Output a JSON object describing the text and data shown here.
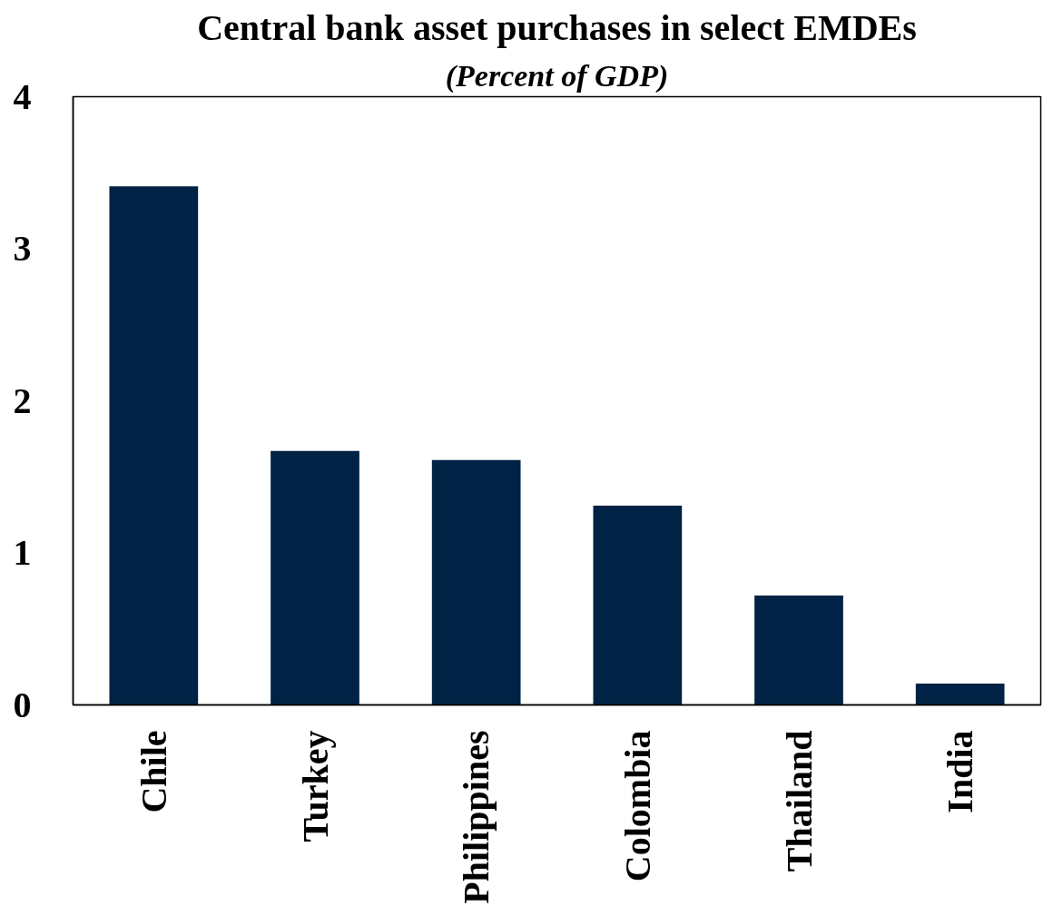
{
  "chart_data": {
    "type": "bar",
    "title": "Central bank asset purchases in select EMDEs",
    "subtitle": "(Percent of GDP)",
    "categories": [
      "Chile",
      "Turkey",
      "Philippines",
      "Colombia",
      "Thailand",
      "India"
    ],
    "values": [
      3.41,
      1.67,
      1.61,
      1.31,
      0.72,
      0.14
    ],
    "color": "#002244",
    "ylim": [
      0,
      4
    ],
    "yticks": [
      0,
      1,
      2,
      3,
      4
    ],
    "grid": false
  }
}
